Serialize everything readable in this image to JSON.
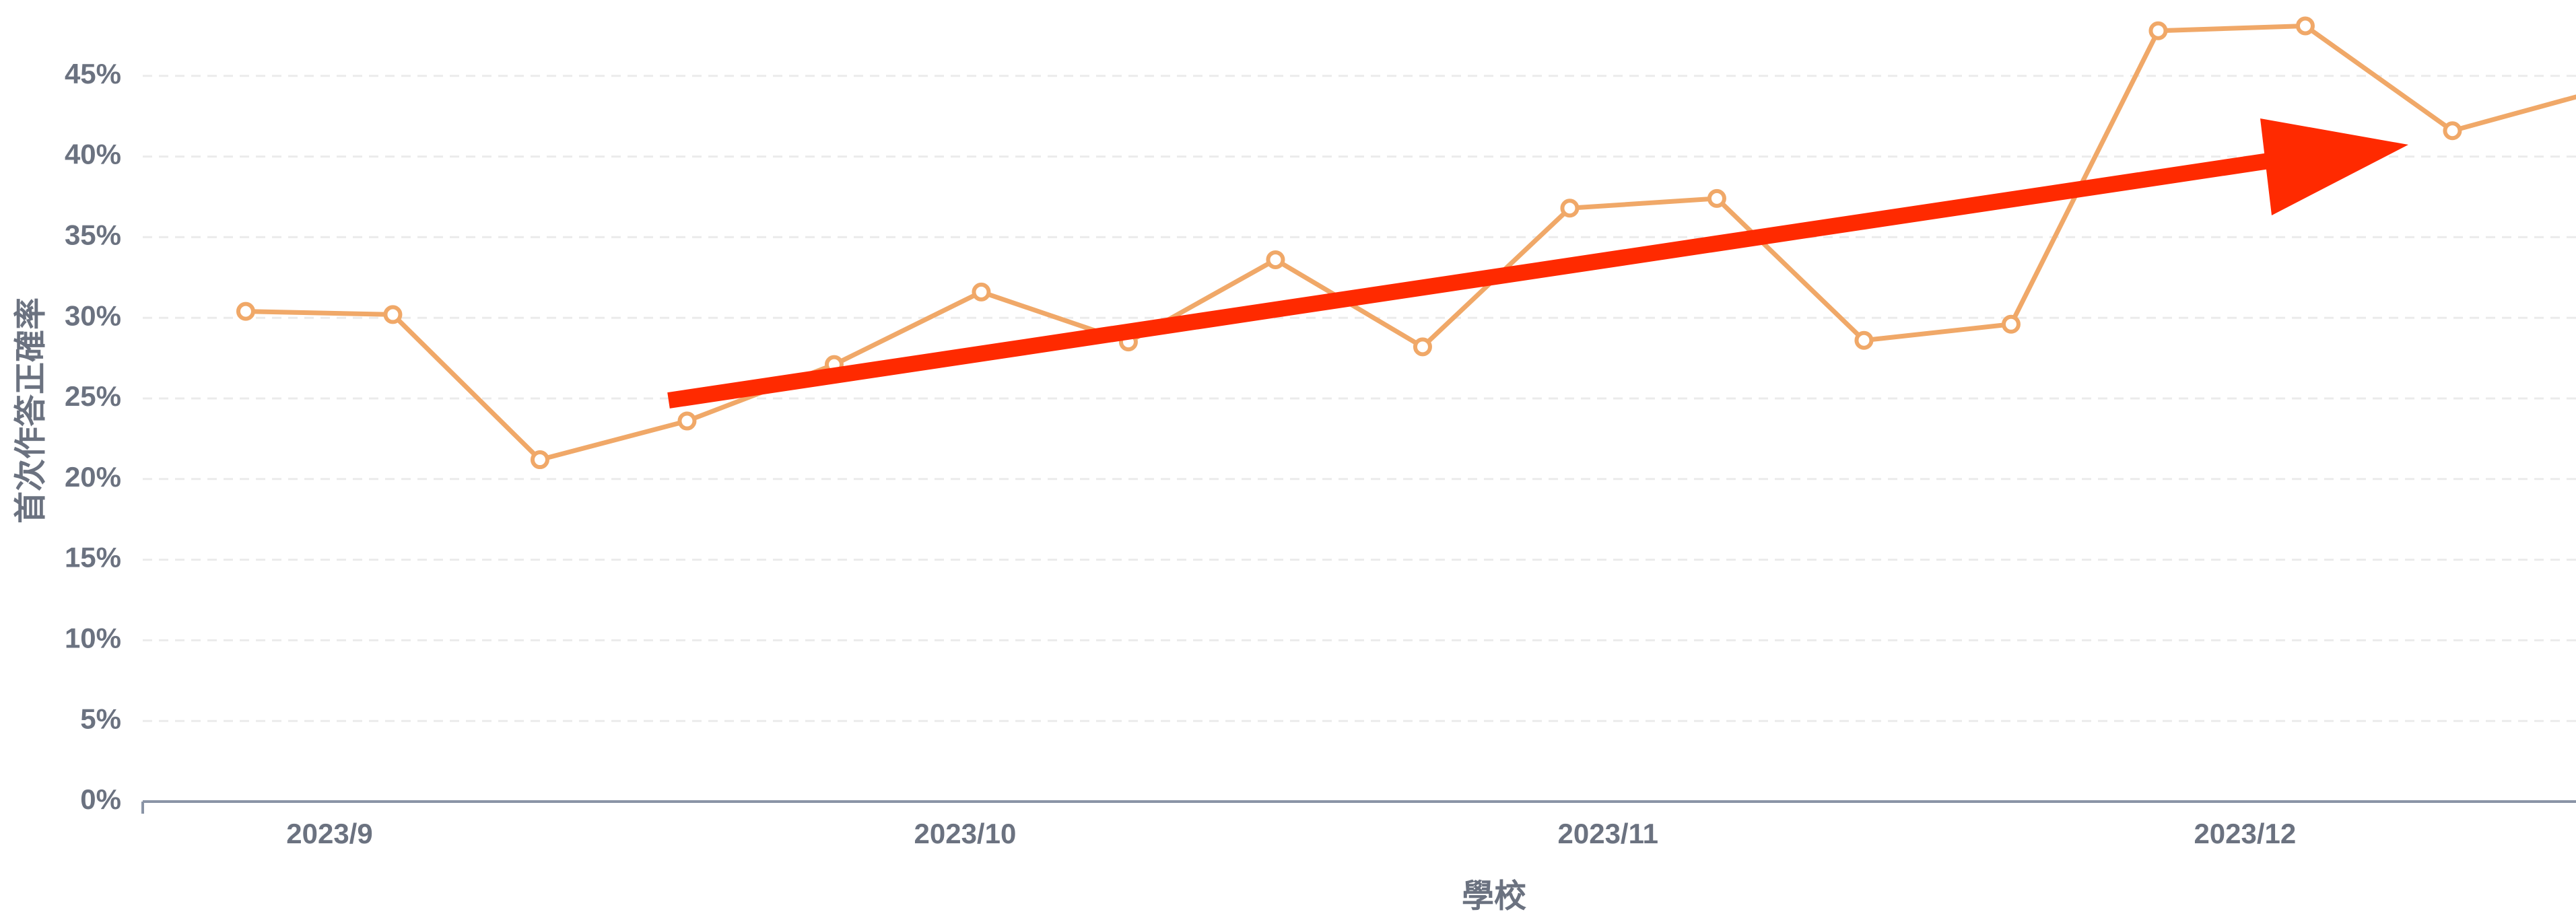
{
  "chart_data": {
    "type": "line",
    "x_label": "學校",
    "y_label": "首次作答正確率",
    "x": [
      0,
      1,
      2,
      3,
      4,
      5,
      6,
      7,
      8,
      9,
      10,
      11,
      12,
      13,
      14,
      15,
      16
    ],
    "series": [
      {
        "name": "學校",
        "color": "#f0a868",
        "values": [
          30.4,
          30.2,
          21.2,
          23.6,
          27.1,
          31.6,
          28.5,
          33.6,
          28.2,
          36.8,
          37.4,
          28.6,
          29.6,
          47.8,
          48.1,
          41.6,
          44.1
        ]
      }
    ],
    "xlim": [
      -0.7,
      15.84
    ],
    "xticks": [
      {
        "value": 0.57,
        "label": "2023/9"
      },
      {
        "value": 4.89,
        "label": "2023/10"
      },
      {
        "value": 9.26,
        "label": "2023/11"
      },
      {
        "value": 13.59,
        "label": "2023/12"
      }
    ],
    "ylim": [
      0,
      50
    ],
    "yticks": [
      {
        "value": 0,
        "label": "0%"
      },
      {
        "value": 5,
        "label": "5%"
      },
      {
        "value": 10,
        "label": "10%"
      },
      {
        "value": 15,
        "label": "15%"
      },
      {
        "value": 20,
        "label": "20%"
      },
      {
        "value": 25,
        "label": "25%"
      },
      {
        "value": 30,
        "label": "30%"
      },
      {
        "value": 35,
        "label": "35%"
      },
      {
        "value": 40,
        "label": "40%"
      },
      {
        "value": 45,
        "label": "45%"
      }
    ],
    "grid": true
  }
}
